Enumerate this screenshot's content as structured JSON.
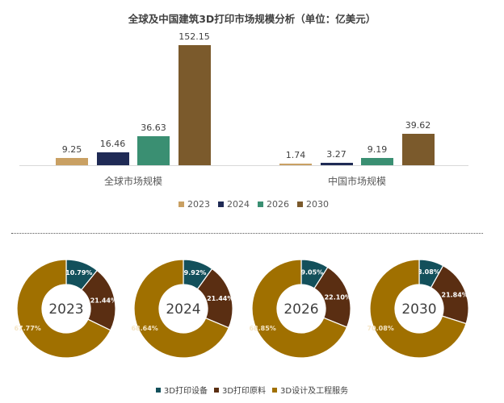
{
  "title": "全球及中国建筑3D打印市场规模分析（单位：亿美元）",
  "colors": {
    "y2023": "#C9A063",
    "y2024": "#1F2A55",
    "y2026": "#3A8F72",
    "y2030": "#7B5A2C",
    "equipment": "#13505B",
    "materials": "#5A2E12",
    "services": "#A07000"
  },
  "chart_data": [
    {
      "type": "bar",
      "title": "全球及中国建筑3D打印市场规模分析（单位：亿美元）",
      "categories": [
        "全球市场规模",
        "中国市场规模"
      ],
      "series": [
        {
          "name": "2023",
          "values": [
            9.25,
            1.74
          ]
        },
        {
          "name": "2024",
          "values": [
            16.46,
            3.27
          ]
        },
        {
          "name": "2026",
          "values": [
            36.63,
            9.19
          ]
        },
        {
          "name": "2030",
          "values": [
            152.15,
            39.62
          ]
        }
      ],
      "legend_position": "bottom",
      "grid": false
    },
    {
      "type": "pie",
      "subtype": "donut",
      "charts": [
        {
          "label": "2023",
          "slices": [
            {
              "name": "3D打印设备",
              "value": 10.79
            },
            {
              "name": "3D打印原料",
              "value": 21.44
            },
            {
              "name": "3D设计及工程服务",
              "value": 67.77
            }
          ]
        },
        {
          "label": "2024",
          "slices": [
            {
              "name": "3D打印设备",
              "value": 9.92
            },
            {
              "name": "3D打印原料",
              "value": 21.44
            },
            {
              "name": "3D设计及工程服务",
              "value": 68.64
            }
          ]
        },
        {
          "label": "2026",
          "slices": [
            {
              "name": "3D打印设备",
              "value": 9.05
            },
            {
              "name": "3D打印原料",
              "value": 22.1
            },
            {
              "name": "3D设计及工程服务",
              "value": 68.85
            }
          ]
        },
        {
          "label": "2030",
          "slices": [
            {
              "name": "3D打印设备",
              "value": 8.08
            },
            {
              "name": "3D打印原料",
              "value": 21.84
            },
            {
              "name": "3D设计及工程服务",
              "value": 70.08
            }
          ]
        }
      ],
      "legend": [
        "3D打印设备",
        "3D打印原料",
        "3D设计及工程服务"
      ],
      "legend_position": "bottom"
    }
  ],
  "bars": {
    "global": {
      "label": "全球市场规模",
      "values": [
        "9.25",
        "16.46",
        "36.63",
        "152.15"
      ]
    },
    "china": {
      "label": "中国市场规模",
      "values": [
        "1.74",
        "3.27",
        "9.19",
        "39.62"
      ]
    }
  },
  "legend": [
    "2023",
    "2024",
    "2026",
    "2030"
  ],
  "donuts": [
    {
      "year": "2023",
      "labels": [
        "10.79%",
        "21.44%",
        "67.77%"
      ]
    },
    {
      "year": "2024",
      "labels": [
        "9.92%",
        "21.44%",
        "68.64%"
      ]
    },
    {
      "year": "2026",
      "labels": [
        "9.05%",
        "22.10%",
        "68.85%"
      ]
    },
    {
      "year": "2030",
      "labels": [
        "8.08%",
        "21.84%",
        "70.08%"
      ]
    }
  ],
  "donut_legend": [
    "3D打印设备",
    "3D打印原料",
    "3D设计及工程服务"
  ]
}
